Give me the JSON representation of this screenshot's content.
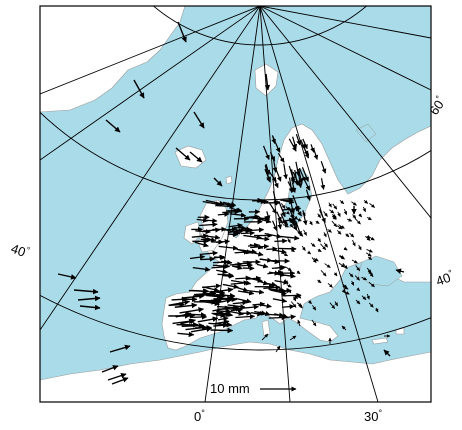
{
  "map": {
    "colors": {
      "ocean": "#a9dbe9",
      "land": "#ffffff",
      "graticule": "#000000",
      "border": "#8a8a8a",
      "frame": "#000000",
      "vector": "#000000"
    },
    "graticule_labels": {
      "lon_0": "0",
      "lon_30": "30",
      "lat_40_west": "40",
      "lat_40_east": "40",
      "lat_60": "60"
    },
    "degree_symbol": "°",
    "scale_bar": {
      "label": "10 mm"
    },
    "vector_icon": "arrow-icon"
  }
}
